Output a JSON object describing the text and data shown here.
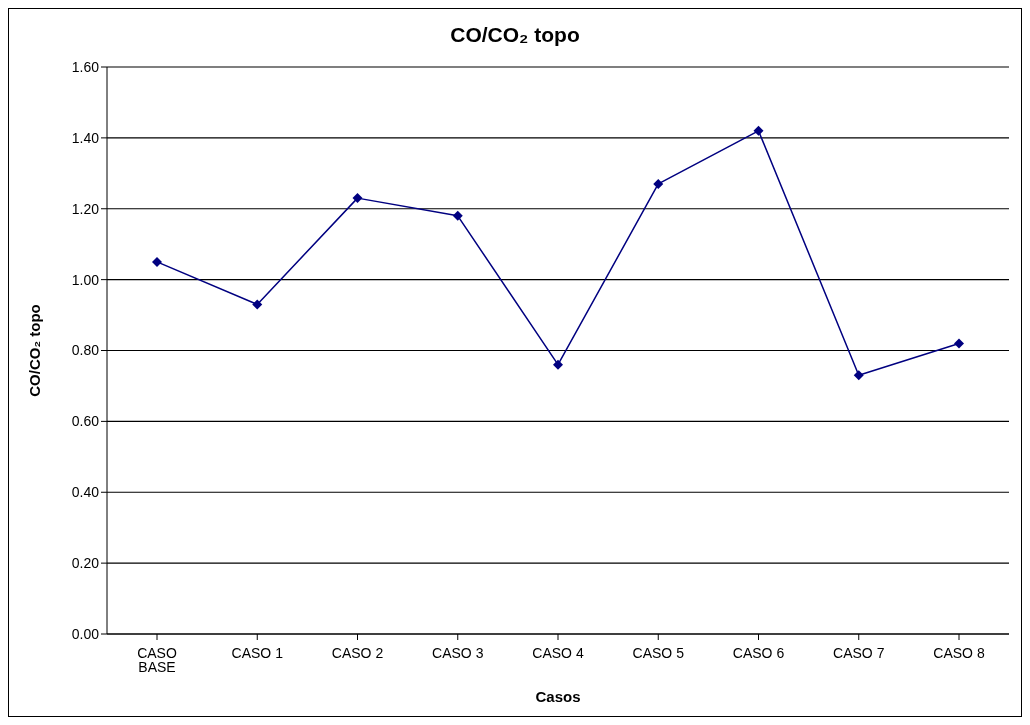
{
  "chart_data": {
    "type": "line",
    "title": "CO/CO₂ topo",
    "xlabel": "Casos",
    "ylabel": "CO/CO₂ topo",
    "categories": [
      "CASO BASE",
      "CASO 1",
      "CASO 2",
      "CASO 3",
      "CASO 4",
      "CASO 5",
      "CASO 6",
      "CASO 7",
      "CASO 8"
    ],
    "series": [
      {
        "color": "#000080",
        "values": [
          1.05,
          0.93,
          1.23,
          1.18,
          0.76,
          1.27,
          1.42,
          0.73,
          0.82
        ]
      }
    ],
    "ylim": [
      0,
      1.6
    ],
    "yticks": [
      {
        "value": 0,
        "label": "0.00"
      },
      {
        "value": 0.2,
        "label": "0.20"
      },
      {
        "value": 0.4,
        "label": "0.40"
      },
      {
        "value": 0.6,
        "label": "0.60"
      },
      {
        "value": 0.8,
        "label": "0.80"
      },
      {
        "value": 1.0,
        "label": "1.00"
      },
      {
        "value": 1.2,
        "label": "1.20"
      },
      {
        "value": 1.4,
        "label": "1.40"
      },
      {
        "value": 1.6,
        "label": "1.60"
      }
    ],
    "grid": "y",
    "legend": false,
    "marker": "diamond",
    "line_style": "solid"
  }
}
